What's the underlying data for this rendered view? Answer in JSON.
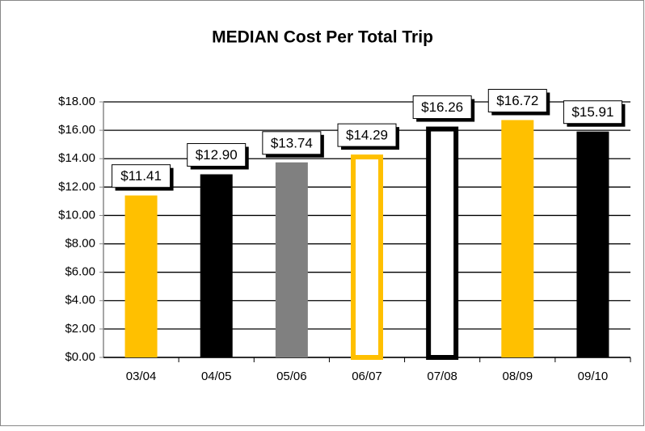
{
  "chart_data": {
    "type": "bar",
    "title": "MEDIAN Cost Per Total Trip",
    "categories": [
      "03/04",
      "04/05",
      "05/06",
      "06/07",
      "07/08",
      "08/09",
      "09/10"
    ],
    "values": [
      11.41,
      12.9,
      13.74,
      14.29,
      16.26,
      16.72,
      15.91
    ],
    "value_labels": [
      "$11.41",
      "$12.90",
      "$13.74",
      "$14.29",
      "$16.26",
      "$16.72",
      "$15.91"
    ],
    "colors": [
      "#ffc000",
      "#000000",
      "#808080",
      "#ffc000",
      "#000000",
      "#ffc000",
      "#000000"
    ],
    "hollow": [
      false,
      false,
      false,
      true,
      true,
      false,
      false
    ],
    "ylim": [
      0,
      18
    ],
    "yticks": [
      {
        "value": 0,
        "label": "$0.00"
      },
      {
        "value": 2,
        "label": "$2.00"
      },
      {
        "value": 4,
        "label": "$4.00"
      },
      {
        "value": 6,
        "label": "$6.00"
      },
      {
        "value": 8,
        "label": "$8.00"
      },
      {
        "value": 10,
        "label": "$10.00"
      },
      {
        "value": 12,
        "label": "$12.00"
      },
      {
        "value": 14,
        "label": "$14.00"
      },
      {
        "value": 16,
        "label": "$16.00"
      },
      {
        "value": 18,
        "label": "$18.00"
      }
    ],
    "grid": true
  }
}
